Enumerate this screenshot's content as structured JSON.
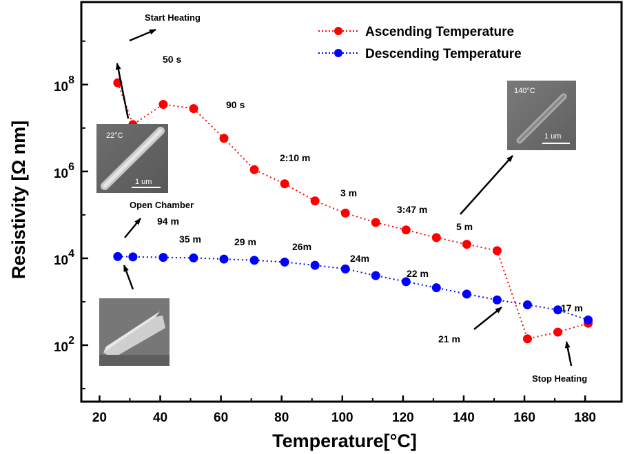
{
  "chart_data": {
    "type": "scatter",
    "title": "",
    "xlabel": "Temperature[°C]",
    "ylabel": "Resistivity [Ω nm]",
    "xlim": [
      14,
      192
    ],
    "x_ticks": [
      20,
      40,
      60,
      80,
      100,
      120,
      140,
      160,
      180
    ],
    "ylim_log10": [
      0.7,
      9.9
    ],
    "y_ticks": [
      {
        "base": "10",
        "exp": "2",
        "log10": 2
      },
      {
        "base": "10",
        "exp": "4",
        "log10": 4
      },
      {
        "base": "10",
        "exp": "6",
        "log10": 6
      },
      {
        "base": "10",
        "exp": "8",
        "log10": 8
      }
    ],
    "series": [
      {
        "name": "Ascending Temperature",
        "color": "#ff0000",
        "x": [
          26,
          31,
          41,
          51,
          61,
          71,
          81,
          91,
          101,
          111,
          121,
          131,
          141,
          151,
          161,
          171,
          181
        ],
        "y": [
          110000000,
          12000000,
          35000000,
          28000000,
          5800000,
          1100000,
          520000,
          210000,
          110000,
          67000,
          45000,
          30000,
          21000,
          15000,
          140,
          200,
          320
        ]
      },
      {
        "name": "Descending Temperature",
        "color": "#0000ff",
        "x": [
          26,
          31,
          41,
          51,
          61,
          71,
          81,
          91,
          101,
          111,
          121,
          131,
          141,
          151,
          161,
          171,
          181
        ],
        "y": [
          11000,
          10800,
          10500,
          10200,
          9600,
          9000,
          8200,
          6900,
          5700,
          4000,
          2900,
          2100,
          1500,
          1100,
          850,
          650,
          380
        ]
      }
    ],
    "annotations": [
      {
        "id": "start-heating",
        "text": "Start Heating"
      },
      {
        "id": "time-50s",
        "text": "50 s"
      },
      {
        "id": "time-90s",
        "text": "90 s"
      },
      {
        "id": "time-2-10m",
        "text": "2:10 m"
      },
      {
        "id": "time-3m",
        "text": "3 m"
      },
      {
        "id": "time-3-47m",
        "text": "3:47 m"
      },
      {
        "id": "time-5m",
        "text": "5 m"
      },
      {
        "id": "open-chamber",
        "text": "Open Chamber"
      },
      {
        "id": "time-94m",
        "text": "94 m"
      },
      {
        "id": "time-35m",
        "text": "35 m"
      },
      {
        "id": "time-29m",
        "text": "29 m"
      },
      {
        "id": "time-26m",
        "text": "26m"
      },
      {
        "id": "time-24m",
        "text": "24m"
      },
      {
        "id": "time-22m",
        "text": "22 m"
      },
      {
        "id": "time-21m",
        "text": "21 m"
      },
      {
        "id": "time-17m",
        "text": "17 m"
      },
      {
        "id": "stop-heating",
        "text": "Stop Heating"
      }
    ],
    "insets": [
      {
        "id": "inset-22c",
        "label": "22°C",
        "scale": "1 um"
      },
      {
        "id": "inset-140c",
        "label": "140°C",
        "scale": "1 um"
      },
      {
        "id": "inset-tilted",
        "label": "",
        "scale": ""
      }
    ],
    "legend_position": "top-right"
  }
}
